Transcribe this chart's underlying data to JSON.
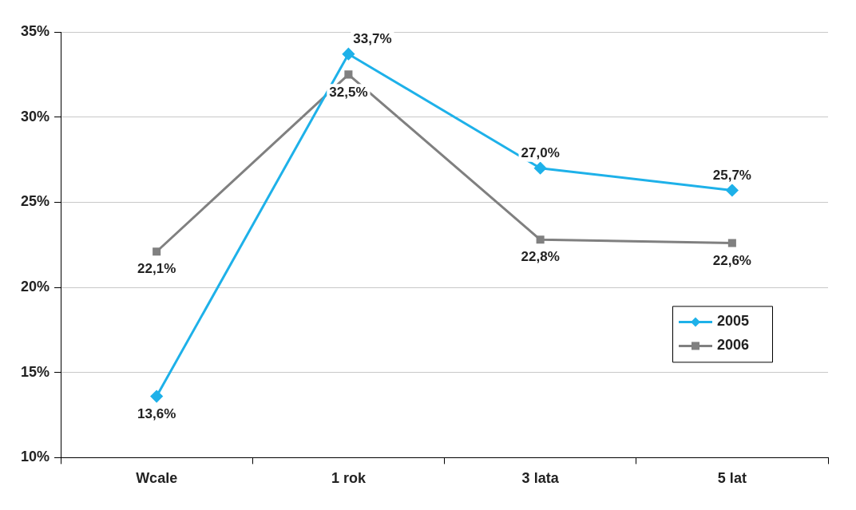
{
  "chart_data": {
    "type": "line",
    "categories": [
      "Wcale",
      "1 rok",
      "3 lata",
      "5 lat"
    ],
    "series": [
      {
        "name": "2005",
        "color": "#1eb1e9",
        "marker": "diamond",
        "values": [
          13.6,
          33.7,
          27.0,
          25.7
        ],
        "value_labels": [
          "13,6%",
          "33,7%",
          "27,0%",
          "25,7%"
        ]
      },
      {
        "name": "2006",
        "color": "#808080",
        "marker": "square",
        "values": [
          22.1,
          32.5,
          22.8,
          22.6
        ],
        "value_labels": [
          "22,1%",
          "32,5%",
          "22,8%",
          "22,6%"
        ]
      }
    ],
    "ylim": [
      10,
      35
    ],
    "yticks": [
      {
        "value": 10,
        "label": "10%"
      },
      {
        "value": 15,
        "label": "15%"
      },
      {
        "value": 20,
        "label": "20%"
      },
      {
        "value": 25,
        "label": "25%"
      },
      {
        "value": 30,
        "label": "30%"
      },
      {
        "value": 35,
        "label": "35%"
      }
    ],
    "grid": "y",
    "legend": "bottom right"
  }
}
